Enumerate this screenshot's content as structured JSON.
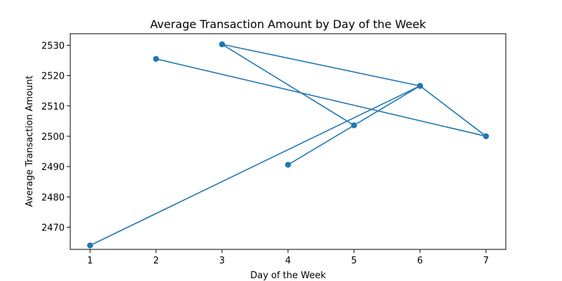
{
  "chart_data": {
    "type": "line",
    "title": "Average Transaction Amount by Day of the Week",
    "xlabel": "Day of the Week",
    "ylabel": "Average Transaction Amount",
    "xlim": [
      0.7,
      7.3
    ],
    "ylim": [
      2462.7,
      2533.8
    ],
    "xticks": [
      1,
      2,
      3,
      4,
      5,
      6,
      7
    ],
    "yticks": [
      2470,
      2480,
      2490,
      2500,
      2510,
      2520,
      2530
    ],
    "grid": false,
    "color": "#1f77b4",
    "series": [
      {
        "x": [
          1,
          6,
          4,
          5,
          3,
          6,
          7,
          2
        ],
        "y": [
          2464.0,
          2516.6,
          2490.6,
          2503.6,
          2530.3,
          2516.6,
          2500.0,
          2525.5
        ]
      }
    ]
  }
}
